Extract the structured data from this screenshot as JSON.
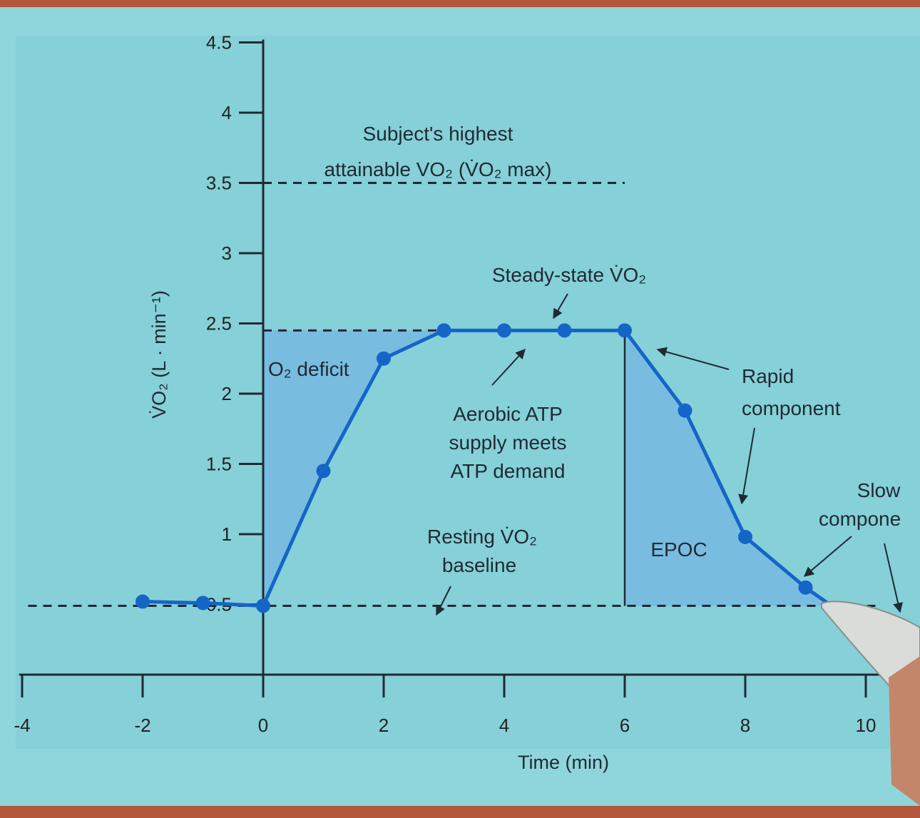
{
  "chart_data": {
    "type": "line",
    "xlabel": "Time (min)",
    "ylabel": "V̇O₂ (L · min⁻¹)",
    "x_ticks": [
      "-4",
      "-2",
      "0",
      "2",
      "4",
      "6",
      "8",
      "10"
    ],
    "y_ticks": [
      "0.5",
      "1",
      "1.5",
      "2",
      "2.5",
      "3",
      "3.5",
      "4",
      "4.5"
    ],
    "xlim": [
      -4,
      10.4
    ],
    "ylim": [
      0,
      4.5
    ],
    "series": [
      {
        "x": [
          -2,
          -1,
          0,
          1,
          2,
          3,
          4,
          5,
          6,
          7,
          8,
          9,
          9.4
        ],
        "y": [
          0.52,
          0.51,
          0.49,
          1.45,
          2.25,
          2.45,
          2.45,
          2.45,
          2.45,
          1.88,
          0.98,
          0.62,
          0.5
        ]
      }
    ],
    "reference_lines": {
      "vo2max": 3.5,
      "steady_state": 2.45,
      "resting_baseline": 0.49
    },
    "shaded_regions": [
      "O₂ deficit",
      "EPOC"
    ],
    "colors": {
      "line": "#1565c8",
      "shade": "#76b8e2",
      "background": "#86d0d8"
    },
    "annotations": {
      "vo2max_line1": "Subject's highest",
      "vo2max_line2": "attainable VO₂ (V̇O₂ max)",
      "steady_state": "Steady-state V̇O₂",
      "o2_deficit": "O₂ deficit",
      "aerobic_1": "Aerobic ATP",
      "aerobic_2": "supply meets",
      "aerobic_3": "ATP demand",
      "resting_1": "Resting V̇O₂",
      "resting_2": "baseline",
      "epoc": "EPOC",
      "rapid_1": "Rapid",
      "rapid_2": "component",
      "slow_1": "Slow",
      "slow_2": "compone"
    }
  }
}
